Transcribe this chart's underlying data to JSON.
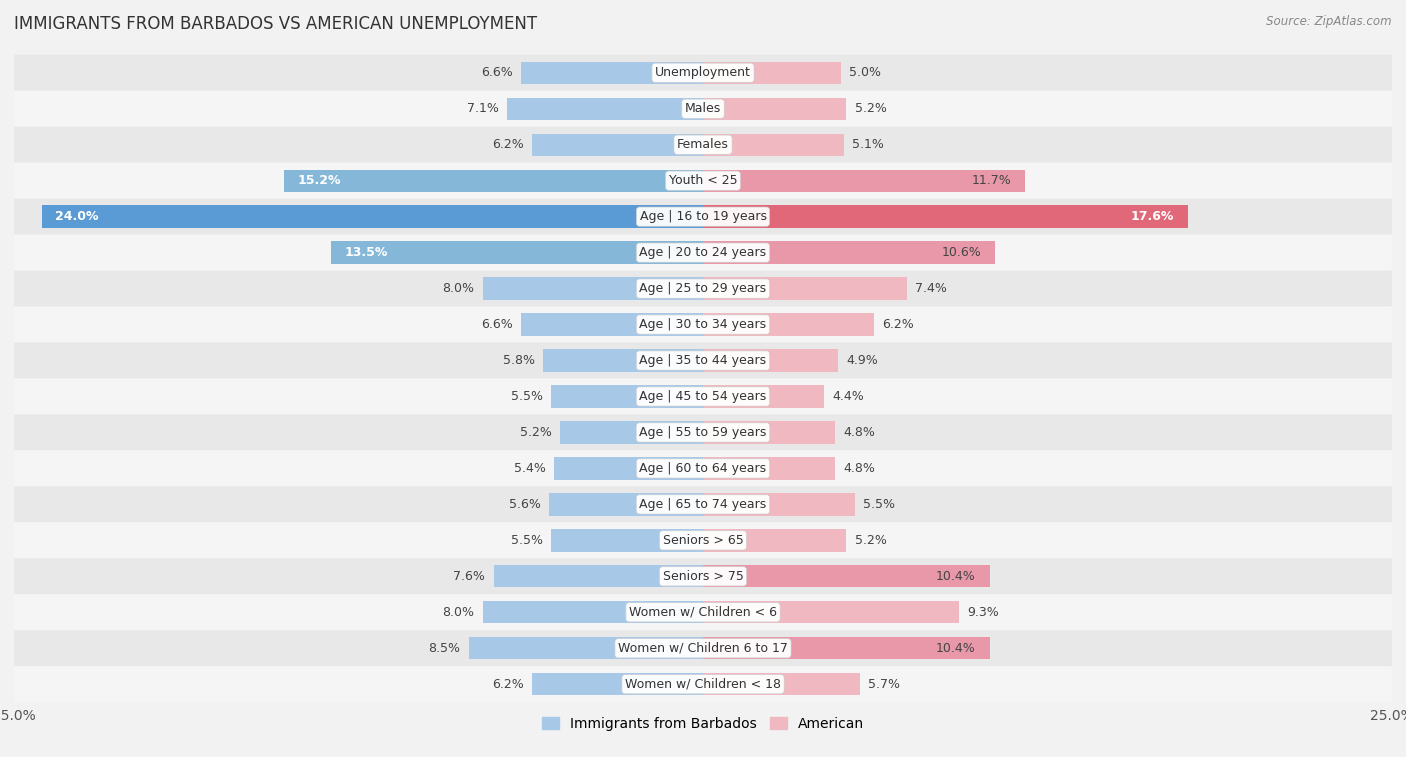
{
  "title": "IMMIGRANTS FROM BARBADOS VS AMERICAN UNEMPLOYMENT",
  "source": "Source: ZipAtlas.com",
  "categories": [
    "Unemployment",
    "Males",
    "Females",
    "Youth < 25",
    "Age | 16 to 19 years",
    "Age | 20 to 24 years",
    "Age | 25 to 29 years",
    "Age | 30 to 34 years",
    "Age | 35 to 44 years",
    "Age | 45 to 54 years",
    "Age | 55 to 59 years",
    "Age | 60 to 64 years",
    "Age | 65 to 74 years",
    "Seniors > 65",
    "Seniors > 75",
    "Women w/ Children < 6",
    "Women w/ Children 6 to 17",
    "Women w/ Children < 18"
  ],
  "barbados_values": [
    6.6,
    7.1,
    6.2,
    15.2,
    24.0,
    13.5,
    8.0,
    6.6,
    5.8,
    5.5,
    5.2,
    5.4,
    5.6,
    5.5,
    7.6,
    8.0,
    8.5,
    6.2
  ],
  "american_values": [
    5.0,
    5.2,
    5.1,
    11.7,
    17.6,
    10.6,
    7.4,
    6.2,
    4.9,
    4.4,
    4.8,
    4.8,
    5.5,
    5.2,
    10.4,
    9.3,
    10.4,
    5.7
  ],
  "barbados_color_normal": "#a8c8e8",
  "barbados_color_medium": "#85b8d8",
  "barbados_color_strong": "#5b9bd5",
  "american_color_normal": "#f0b8c0",
  "american_color_medium": "#e898a8",
  "american_color_strong": "#e06878",
  "x_max": 25.0,
  "row_colors": [
    "#e8e8e8",
    "#f5f5f5"
  ],
  "label_fontsize": 9.0,
  "title_fontsize": 12,
  "legend_barbados": "Immigrants from Barbados",
  "legend_american": "American"
}
